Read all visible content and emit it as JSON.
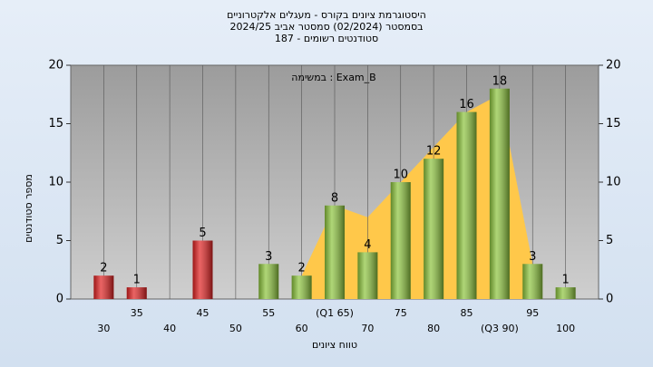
{
  "chart_data": {
    "type": "bar",
    "title": [
      "היסטוגרמת ציונים בקורס - מעגלים אלקטרוניים",
      "בסמסטר (02/2024) סמסטר אביב 2024/25",
      "סטודנטים רשומים - 187"
    ],
    "annotation": "במשימה : Exam_B",
    "x_label": "טווח ציונים",
    "y_label": "מספר סטודנטים",
    "x": [
      30,
      35,
      40,
      45,
      50,
      55,
      60,
      65,
      70,
      75,
      80,
      85,
      90,
      95,
      100
    ],
    "values": [
      2,
      1,
      null,
      5,
      null,
      3,
      2,
      8,
      4,
      10,
      12,
      16,
      18,
      3,
      1
    ],
    "colors": [
      "#e02020",
      "#e02020",
      null,
      "#e02020",
      null,
      "#8cc43c",
      "#8cc43c",
      "#8cc43c",
      "#8cc43c",
      "#8cc43c",
      "#8cc43c",
      "#8cc43c",
      "#8cc43c",
      "#8cc43c",
      "#8cc43c"
    ],
    "area_values": [
      null,
      null,
      null,
      null,
      null,
      null,
      2,
      8,
      7,
      10,
      13,
      16,
      17.5,
      3,
      null
    ],
    "area_color": "#ffc84a",
    "xlim": [
      25,
      105
    ],
    "xticks": [
      30,
      35,
      40,
      45,
      50,
      55,
      60,
      {
        "value": 65,
        "label": "(Q1 65)"
      },
      70,
      75,
      80,
      85,
      {
        "value": 90,
        "label": "(Q3 90)"
      },
      95,
      100
    ],
    "ylim": [
      0,
      20
    ],
    "yticks": [
      0,
      5,
      10,
      15,
      20
    ],
    "grid": true
  }
}
